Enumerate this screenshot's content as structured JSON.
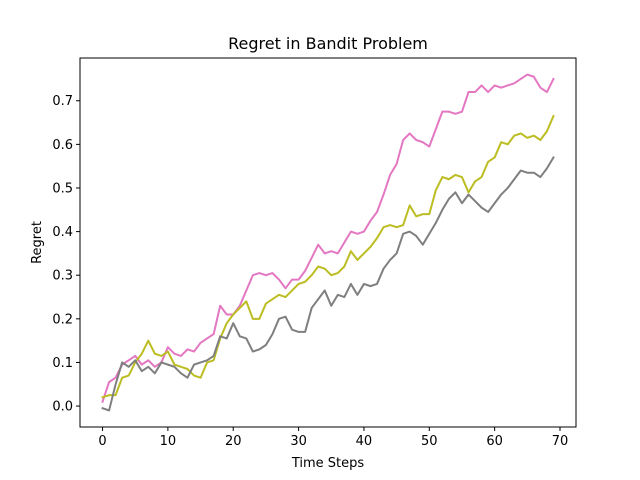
{
  "chart_data": {
    "type": "line",
    "title": "Regret in Bandit Problem",
    "xlabel": "Time Steps",
    "ylabel": "Regret",
    "xlim": [
      -3.45,
      72.45
    ],
    "ylim": [
      -0.048,
      0.798
    ],
    "xticks": [
      0,
      10,
      20,
      30,
      40,
      50,
      60,
      70
    ],
    "yticks": [
      0.0,
      0.1,
      0.2,
      0.3,
      0.4,
      0.5,
      0.6,
      0.7
    ],
    "ytick_labels": [
      "0.0",
      "0.1",
      "0.2",
      "0.3",
      "0.4",
      "0.5",
      "0.6",
      "0.7"
    ],
    "grid": false,
    "legend": false,
    "series": [
      {
        "color": "#e377c2",
        "x": [
          0,
          1,
          2,
          3,
          4,
          5,
          6,
          7,
          8,
          9,
          10,
          11,
          12,
          13,
          14,
          15,
          16,
          17,
          18,
          19,
          20,
          21,
          22,
          23,
          24,
          25,
          26,
          27,
          28,
          29,
          30,
          31,
          32,
          33,
          34,
          35,
          36,
          37,
          38,
          39,
          40,
          41,
          42,
          43,
          44,
          45,
          46,
          47,
          48,
          49,
          50,
          51,
          52,
          53,
          54,
          55,
          56,
          57,
          58,
          59,
          60,
          61,
          62,
          63,
          64,
          65,
          66,
          67,
          68,
          69
        ],
        "values": [
          0.01,
          0.055,
          0.065,
          0.095,
          0.105,
          0.115,
          0.095,
          0.105,
          0.09,
          0.1,
          0.135,
          0.12,
          0.115,
          0.13,
          0.125,
          0.145,
          0.155,
          0.165,
          0.23,
          0.21,
          0.21,
          0.23,
          0.265,
          0.3,
          0.305,
          0.3,
          0.305,
          0.29,
          0.27,
          0.29,
          0.29,
          0.31,
          0.34,
          0.37,
          0.35,
          0.355,
          0.35,
          0.375,
          0.4,
          0.395,
          0.4,
          0.425,
          0.445,
          0.485,
          0.53,
          0.555,
          0.61,
          0.625,
          0.61,
          0.605,
          0.595,
          0.635,
          0.675,
          0.675,
          0.67,
          0.675,
          0.72,
          0.72,
          0.735,
          0.72,
          0.735,
          0.73,
          0.735,
          0.74,
          0.75,
          0.76,
          0.755,
          0.73,
          0.72,
          0.75
        ]
      },
      {
        "color": "#bcbd22",
        "x": [
          0,
          1,
          2,
          3,
          4,
          5,
          6,
          7,
          8,
          9,
          10,
          11,
          12,
          13,
          14,
          15,
          16,
          17,
          18,
          19,
          20,
          21,
          22,
          23,
          24,
          25,
          26,
          27,
          28,
          29,
          30,
          31,
          32,
          33,
          34,
          35,
          36,
          37,
          38,
          39,
          40,
          41,
          42,
          43,
          44,
          45,
          46,
          47,
          48,
          49,
          50,
          51,
          52,
          53,
          54,
          55,
          56,
          57,
          58,
          59,
          60,
          61,
          62,
          63,
          64,
          65,
          66,
          67,
          68,
          69
        ],
        "values": [
          0.02,
          0.025,
          0.025,
          0.065,
          0.07,
          0.1,
          0.12,
          0.15,
          0.12,
          0.115,
          0.125,
          0.095,
          0.09,
          0.085,
          0.07,
          0.065,
          0.1,
          0.105,
          0.155,
          0.19,
          0.21,
          0.225,
          0.24,
          0.2,
          0.2,
          0.235,
          0.245,
          0.255,
          0.25,
          0.265,
          0.28,
          0.285,
          0.3,
          0.32,
          0.315,
          0.3,
          0.305,
          0.32,
          0.355,
          0.335,
          0.35,
          0.365,
          0.385,
          0.41,
          0.415,
          0.41,
          0.415,
          0.46,
          0.435,
          0.44,
          0.44,
          0.495,
          0.525,
          0.52,
          0.53,
          0.525,
          0.49,
          0.515,
          0.525,
          0.56,
          0.57,
          0.605,
          0.6,
          0.62,
          0.625,
          0.615,
          0.62,
          0.61,
          0.63,
          0.665
        ]
      },
      {
        "color": "#7f7f7f",
        "x": [
          0,
          1,
          2,
          3,
          4,
          5,
          6,
          7,
          8,
          9,
          10,
          11,
          12,
          13,
          14,
          15,
          16,
          17,
          18,
          19,
          20,
          21,
          22,
          23,
          24,
          25,
          26,
          27,
          28,
          29,
          30,
          31,
          32,
          33,
          34,
          35,
          36,
          37,
          38,
          39,
          40,
          41,
          42,
          43,
          44,
          45,
          46,
          47,
          48,
          49,
          50,
          51,
          52,
          53,
          54,
          55,
          56,
          57,
          58,
          59,
          60,
          61,
          62,
          63,
          64,
          65,
          66,
          67,
          68,
          69
        ],
        "values": [
          -0.005,
          -0.01,
          0.05,
          0.1,
          0.09,
          0.105,
          0.08,
          0.09,
          0.075,
          0.1,
          0.095,
          0.09,
          0.075,
          0.065,
          0.095,
          0.1,
          0.105,
          0.115,
          0.16,
          0.155,
          0.19,
          0.16,
          0.155,
          0.125,
          0.13,
          0.14,
          0.165,
          0.2,
          0.205,
          0.175,
          0.17,
          0.17,
          0.225,
          0.245,
          0.265,
          0.23,
          0.255,
          0.25,
          0.28,
          0.255,
          0.28,
          0.275,
          0.28,
          0.315,
          0.335,
          0.35,
          0.395,
          0.4,
          0.39,
          0.37,
          0.395,
          0.42,
          0.45,
          0.475,
          0.49,
          0.465,
          0.485,
          0.47,
          0.455,
          0.445,
          0.465,
          0.485,
          0.5,
          0.52,
          0.54,
          0.535,
          0.535,
          0.525,
          0.545,
          0.57
        ]
      }
    ]
  }
}
